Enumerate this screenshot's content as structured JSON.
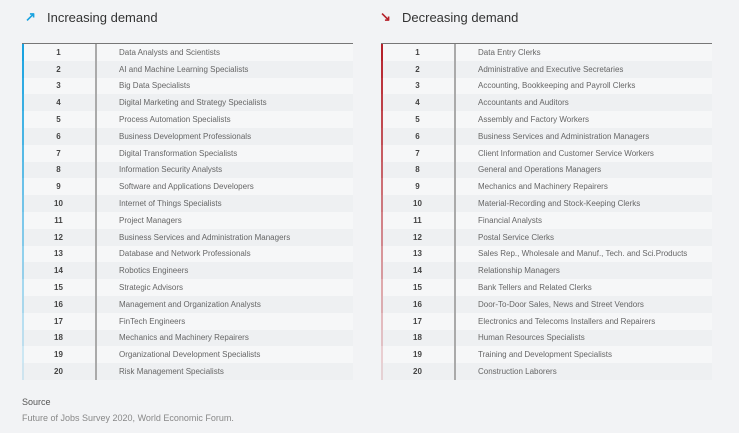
{
  "increasing": {
    "icon": "arrow-up-right-icon",
    "glyph": "↗",
    "title": "Increasing demand",
    "color": "#1aa3e0",
    "items": [
      "Data Analysts and Scientists",
      "AI and Machine Learning Specialists",
      "Big Data Specialists",
      "Digital Marketing and Strategy Specialists",
      "Process Automation Specialists",
      "Business Development Professionals",
      "Digital Transformation Specialists",
      "Information Security Analysts",
      "Software and Applications Developers",
      "Internet of Things Specialists",
      "Project Managers",
      "Business Services and Administration Managers",
      "Database and Network Professionals",
      "Robotics Engineers",
      "Strategic Advisors",
      "Management and Organization Analysts",
      "FinTech Engineers",
      "Mechanics and Machinery Repairers",
      "Organizational Development Specialists",
      "Risk Management Specialists"
    ]
  },
  "decreasing": {
    "icon": "arrow-down-right-icon",
    "glyph": "↘",
    "title": "Decreasing demand",
    "color": "#b5222b",
    "items": [
      "Data Entry Clerks",
      "Administrative and Executive Secretaries",
      "Accounting,  Bookkeeping and Payroll Clerks",
      "Accountants and Auditors",
      "Assembly and Factory Workers",
      "Business Services and Administration Managers",
      "Client Information and Customer Service Workers",
      "General and Operations Managers",
      "Mechanics and Machinery Repairers",
      "Material-Recording and Stock-Keeping Clerks",
      "Financial Analysts",
      "Postal Service Clerks",
      "Sales Rep., Wholesale and Manuf., Tech. and Sci.Products",
      "Relationship Managers",
      "Bank Tellers and Related Clerks",
      "Door-To-Door Sales, News and Street Vendors",
      "Electronics and Telecoms Installers and Repairers",
      "Human Resources Specialists",
      "Training and Development Specialists",
      "Construction Laborers"
    ]
  },
  "source": {
    "label": "Source",
    "text": "Future of Jobs Survey 2020, World Economic Forum."
  }
}
